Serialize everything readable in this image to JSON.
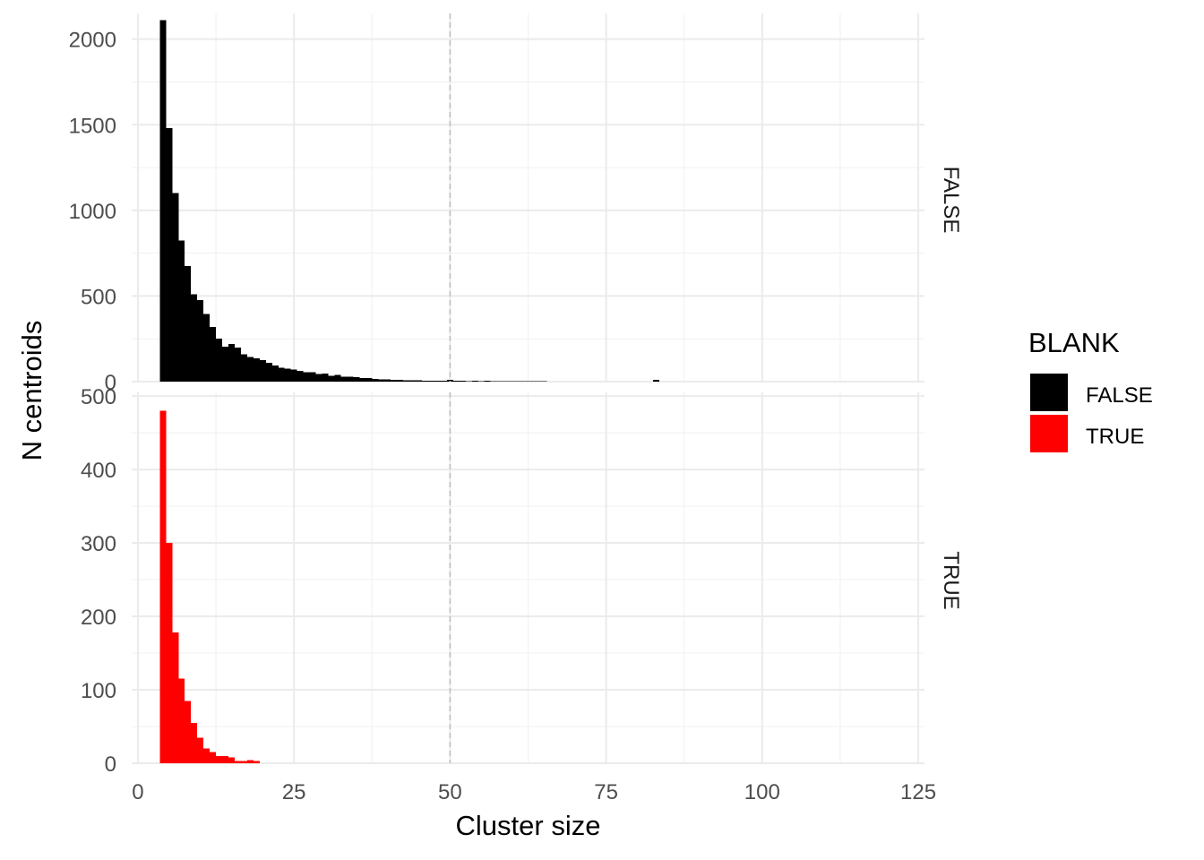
{
  "chart_data": {
    "type": "bar",
    "subtype": "faceted-histogram",
    "xlabel": "Cluster size",
    "ylabel": "N centroids",
    "xlim": [
      -1,
      126
    ],
    "x_ticks": [
      0,
      25,
      50,
      75,
      100,
      125
    ],
    "bin_width": 1,
    "reference_line": {
      "x": 50,
      "style": "dashed",
      "color": "#bebebe"
    },
    "grid": true,
    "theme": "minimal",
    "legend": {
      "title": "BLANK",
      "position": "right",
      "entries": [
        {
          "label": "FALSE",
          "color": "#000000"
        },
        {
          "label": "TRUE",
          "color": "#ff0000"
        }
      ]
    },
    "panels": [
      {
        "strip_label": "FALSE",
        "color": "#000000",
        "ylim": [
          0,
          2150
        ],
        "y_ticks": [
          0,
          500,
          1000,
          1500,
          2000
        ],
        "x": [
          4,
          5,
          6,
          7,
          8,
          9,
          10,
          11,
          12,
          13,
          14,
          15,
          16,
          17,
          18,
          19,
          20,
          21,
          22,
          23,
          24,
          25,
          26,
          27,
          28,
          29,
          30,
          31,
          32,
          33,
          34,
          35,
          36,
          37,
          38,
          39,
          40,
          41,
          42,
          43,
          44,
          45,
          46,
          47,
          48,
          49,
          50,
          51,
          52,
          53,
          54,
          55,
          56,
          57,
          58,
          59,
          60,
          61,
          62,
          63,
          64,
          65,
          83
        ],
        "values": [
          2110,
          1480,
          1100,
          825,
          675,
          510,
          475,
          395,
          320,
          250,
          205,
          220,
          200,
          160,
          145,
          135,
          125,
          110,
          95,
          80,
          75,
          70,
          62,
          55,
          55,
          45,
          48,
          35,
          40,
          30,
          30,
          25,
          22,
          20,
          15,
          12,
          12,
          10,
          10,
          8,
          9,
          7,
          6,
          5,
          5,
          4,
          10,
          6,
          4,
          3,
          5,
          3,
          4,
          3,
          3,
          3,
          2,
          2,
          3,
          2,
          2,
          3,
          10
        ]
      },
      {
        "strip_label": "TRUE",
        "color": "#ff0000",
        "ylim": [
          0,
          505
        ],
        "y_ticks": [
          0,
          100,
          200,
          300,
          400,
          500
        ],
        "x": [
          4,
          5,
          6,
          7,
          8,
          9,
          10,
          11,
          12,
          13,
          14,
          15,
          16,
          17,
          18,
          19
        ],
        "values": [
          480,
          300,
          178,
          115,
          85,
          55,
          35,
          20,
          15,
          10,
          10,
          8,
          3,
          3,
          4,
          3
        ]
      }
    ]
  }
}
